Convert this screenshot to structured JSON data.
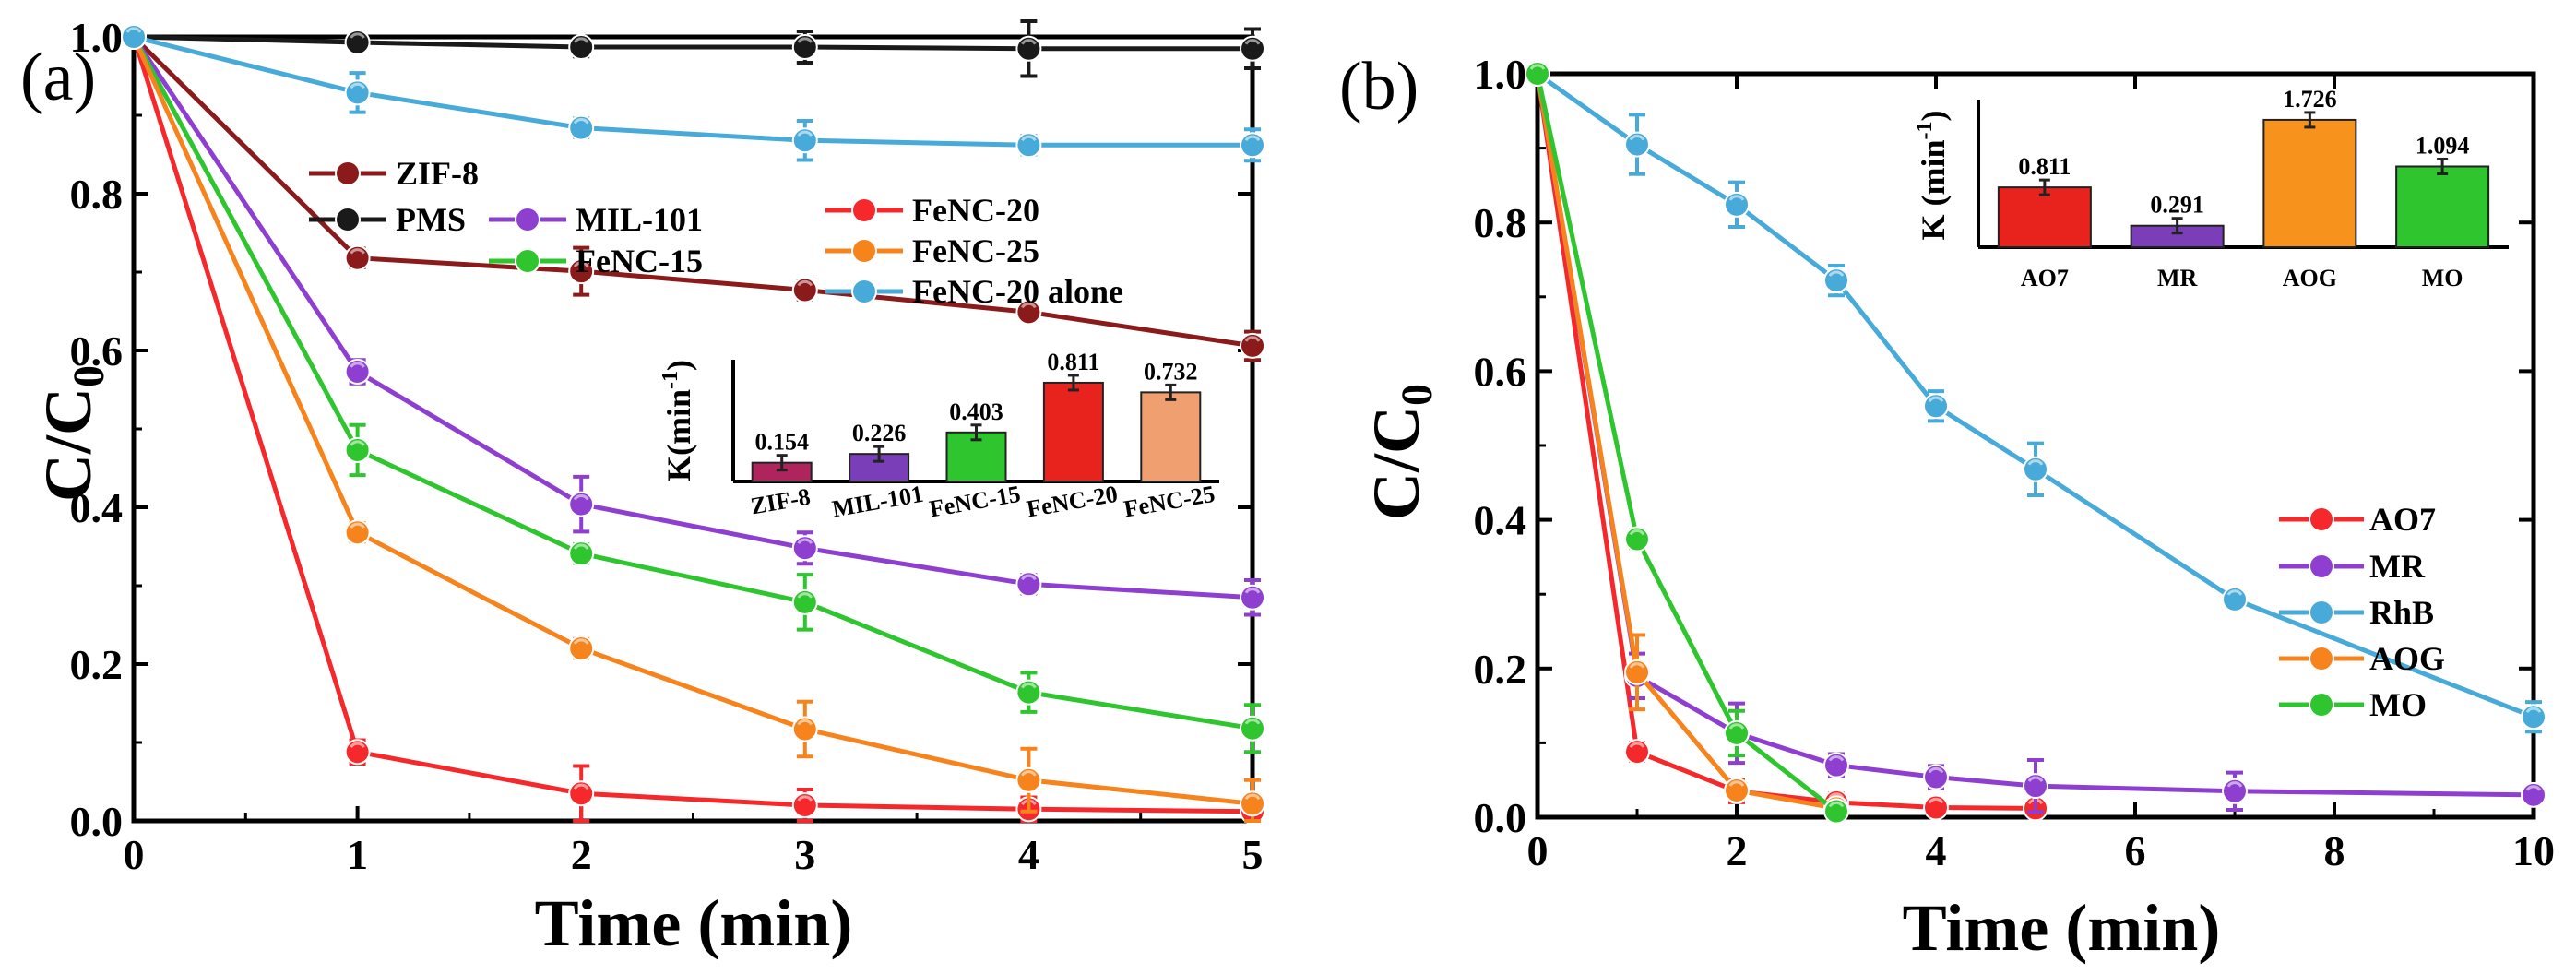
{
  "colors": {
    "ZIF-8": "#8b1a1a",
    "PMS": "#1a1a1a",
    "MIL-101": "#8e3fd0",
    "FeNC-15": "#2ec52e",
    "FeNC-20": "#f5282b",
    "FeNC-25": "#f7831d",
    "FeNC-20 alone": "#47aad8",
    "AO7": "#f5282b",
    "MR": "#8e3fd0",
    "RhB": "#47aad8",
    "AOG": "#f7831d",
    "MO": "#2ec52e"
  },
  "chart_data": [
    {
      "panel": "(a)",
      "type": "line",
      "xlabel": "Time (min)",
      "ylabel_main": "C/C",
      "ylabel_sub": "0",
      "xlim": [
        0,
        5
      ],
      "ylim": [
        0,
        1.0
      ],
      "xticks": [
        "0",
        "1",
        "2",
        "3",
        "4",
        "5"
      ],
      "yticks": [
        "0.0",
        "0.2",
        "0.4",
        "0.6",
        "0.8",
        "1.0"
      ],
      "x": [
        0,
        1,
        2,
        3,
        4,
        5
      ],
      "series": [
        {
          "name": "ZIF-8",
          "values": [
            1.0,
            0.718,
            0.701,
            0.677,
            0.649,
            0.606
          ],
          "errors": [
            0,
            0.012,
            0.03,
            0.012,
            0.01,
            0.018
          ]
        },
        {
          "name": "PMS",
          "values": [
            1.0,
            0.993,
            0.987,
            0.987,
            0.985,
            0.985
          ],
          "errors": [
            0,
            0.008,
            0.012,
            0.02,
            0.035,
            0.025
          ]
        },
        {
          "name": "MIL-101",
          "values": [
            1.0,
            0.573,
            0.404,
            0.348,
            0.302,
            0.285
          ],
          "errors": [
            0,
            0.015,
            0.035,
            0.02,
            0.012,
            0.022
          ]
        },
        {
          "name": "FeNC-15",
          "values": [
            1.0,
            0.473,
            0.341,
            0.279,
            0.164,
            0.118
          ],
          "errors": [
            0,
            0.032,
            0.012,
            0.035,
            0.025,
            0.03
          ]
        },
        {
          "name": "FeNC-20",
          "values": [
            1.0,
            0.088,
            0.035,
            0.02,
            0.015,
            0.012
          ],
          "errors": [
            0,
            0.015,
            0.035,
            0.02,
            0.015,
            0.01
          ]
        },
        {
          "name": "FeNC-25",
          "values": [
            1.0,
            0.368,
            0.22,
            0.117,
            0.052,
            0.022
          ],
          "errors": [
            0,
            0.012,
            0.012,
            0.035,
            0.04,
            0.03
          ]
        },
        {
          "name": "FeNC-20 alone",
          "values": [
            1.0,
            0.929,
            0.884,
            0.868,
            0.862,
            0.862
          ],
          "errors": [
            0,
            0.025,
            0.012,
            0.025,
            0.012,
            0.02
          ]
        }
      ],
      "legend": [
        "ZIF-8",
        "PMS",
        "MIL-101",
        "FeNC-15",
        "FeNC-20",
        "FeNC-25",
        "FeNC-20 alone"
      ],
      "inset": {
        "type": "bar",
        "ylabel": "K(min",
        "ylabel_sup": "-1",
        "ylabel_close": ")",
        "categories": [
          "ZIF-8",
          "MIL-101",
          "FeNC-15",
          "FeNC-20",
          "FeNC-25"
        ],
        "values": [
          0.154,
          0.226,
          0.403,
          0.811,
          0.732
        ],
        "value_labels": [
          "0.154",
          "0.226",
          "0.403",
          "0.811",
          "0.732"
        ],
        "colors": [
          "#b0245e",
          "#7a3fb8",
          "#2ec52e",
          "#e8231e",
          "#f0a070"
        ],
        "ylim": [
          0,
          1.0
        ]
      }
    },
    {
      "panel": "(b)",
      "type": "line",
      "xlabel": "Time (min)",
      "ylabel_main": "C/C",
      "ylabel_sub": "0",
      "xlim": [
        0,
        10
      ],
      "ylim": [
        0,
        1.0
      ],
      "xticks": [
        "0",
        "2",
        "4",
        "6",
        "8",
        "10"
      ],
      "yticks": [
        "0.0",
        "0.2",
        "0.4",
        "0.6",
        "0.8",
        "1.0"
      ],
      "series": [
        {
          "name": "AO7",
          "x": [
            0,
            1,
            2,
            3,
            4,
            5
          ],
          "values": [
            1.0,
            0.088,
            0.035,
            0.02,
            0.013,
            0.012
          ],
          "errors": [
            0,
            0.012,
            0.015,
            0.012,
            0.01,
            0.01
          ]
        },
        {
          "name": "MR",
          "x": [
            0,
            1,
            2,
            3,
            4,
            5,
            7,
            10
          ],
          "values": [
            1.0,
            0.19,
            0.113,
            0.07,
            0.054,
            0.042,
            0.035,
            0.03
          ],
          "errors": [
            0,
            0.03,
            0.04,
            0.015,
            0.015,
            0.035,
            0.025,
            0.01
          ]
        },
        {
          "name": "RhB",
          "x": [
            0,
            1,
            2,
            3,
            4,
            5,
            7,
            10
          ],
          "values": [
            1.0,
            0.905,
            0.824,
            0.722,
            0.553,
            0.468,
            0.293,
            0.135
          ],
          "errors": [
            0,
            0.04,
            0.03,
            0.02,
            0.02,
            0.035,
            0.01,
            0.02
          ]
        },
        {
          "name": "AOG",
          "x": [
            0,
            1,
            2,
            3
          ],
          "values": [
            1.0,
            0.195,
            0.036,
            0.012
          ],
          "errors": [
            0,
            0.05,
            0.012,
            0.01
          ]
        },
        {
          "name": "MO",
          "x": [
            0,
            1,
            2,
            3
          ],
          "values": [
            1.0,
            0.374,
            0.113,
            0.008
          ],
          "errors": [
            0,
            0.012,
            0.03,
            0.01
          ]
        }
      ],
      "legend": [
        "AO7",
        "MR",
        "RhB",
        "AOG",
        "MO"
      ],
      "inset": {
        "type": "bar",
        "ylabel": "K (min",
        "ylabel_sup": "-1",
        "ylabel_close": ")",
        "categories": [
          "AO7",
          "MR",
          "AOG",
          "MO"
        ],
        "values": [
          0.811,
          0.291,
          1.726,
          1.094
        ],
        "value_labels": [
          "0.811",
          "0.291",
          "1.726",
          "1.094"
        ],
        "colors": [
          "#e8231e",
          "#7a3fb8",
          "#f7931d",
          "#2ec52e"
        ],
        "ylim": [
          0,
          2.0
        ]
      }
    }
  ]
}
